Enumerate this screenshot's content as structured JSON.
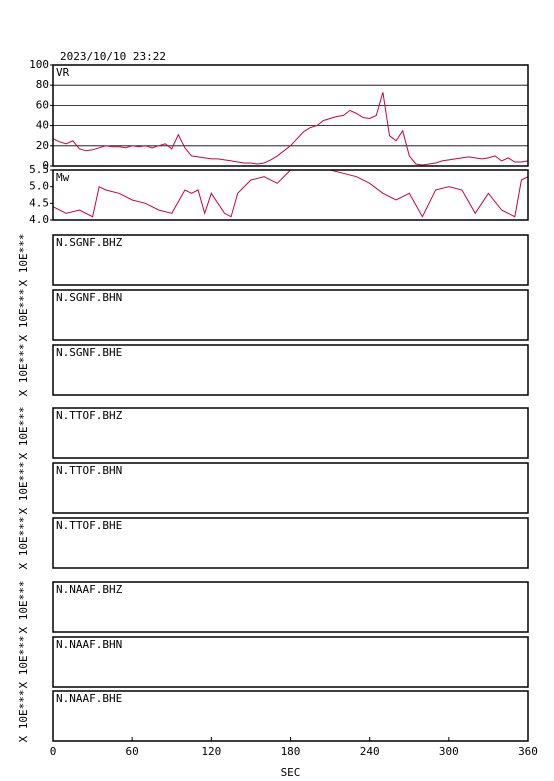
{
  "chart_data": [
    {
      "type": "line",
      "title": "2023/10/10 23:22",
      "label": "VR",
      "color": "#cc0044",
      "x": [
        0,
        5,
        10,
        15,
        20,
        25,
        30,
        35,
        40,
        45,
        50,
        55,
        60,
        65,
        70,
        75,
        80,
        85,
        90,
        95,
        100,
        105,
        110,
        115,
        120,
        125,
        130,
        135,
        140,
        145,
        150,
        155,
        160,
        165,
        170,
        175,
        180,
        185,
        190,
        195,
        200,
        205,
        210,
        215,
        220,
        225,
        230,
        235,
        240,
        245,
        250,
        255,
        260,
        265,
        270,
        275,
        280,
        285,
        290,
        295,
        300,
        305,
        310,
        315,
        320,
        325,
        330,
        335,
        340,
        345,
        350,
        355,
        360
      ],
      "values": [
        27,
        24,
        22,
        25,
        17,
        15,
        16,
        18,
        20,
        19,
        19,
        18,
        20,
        19,
        20,
        18,
        20,
        22,
        17,
        31,
        18,
        10,
        9,
        8,
        7,
        7,
        6,
        5,
        4,
        3,
        3,
        2,
        3,
        6,
        10,
        15,
        20,
        27,
        34,
        38,
        40,
        45,
        47,
        49,
        50,
        55,
        52,
        48,
        47,
        50,
        73,
        30,
        25,
        35,
        10,
        2,
        1,
        2,
        3,
        5,
        6,
        7,
        8,
        9,
        8,
        7,
        8,
        10,
        5,
        8,
        4,
        4,
        5
      ],
      "xlim": [
        0,
        360
      ],
      "ylim": [
        0,
        100
      ],
      "yticks": [
        0,
        20,
        40,
        60,
        80,
        100
      ],
      "grid": true
    },
    {
      "type": "line",
      "label": "Mw",
      "color": "#cc0044",
      "x": [
        0,
        10,
        20,
        30,
        35,
        40,
        50,
        60,
        70,
        80,
        90,
        100,
        105,
        110,
        115,
        120,
        130,
        135,
        140,
        150,
        160,
        170,
        180,
        190,
        200,
        210,
        220,
        230,
        240,
        250,
        260,
        270,
        280,
        290,
        300,
        310,
        320,
        330,
        340,
        350,
        355,
        360
      ],
      "values": [
        4.4,
        4.2,
        4.3,
        4.1,
        5.0,
        4.9,
        4.8,
        4.6,
        4.5,
        4.3,
        4.2,
        4.9,
        4.8,
        4.9,
        4.2,
        4.8,
        4.2,
        4.1,
        4.8,
        5.2,
        5.3,
        5.1,
        5.5,
        5.5,
        5.5,
        5.5,
        5.4,
        5.3,
        5.1,
        4.8,
        4.6,
        4.8,
        4.1,
        4.9,
        5.0,
        4.9,
        4.2,
        4.8,
        4.3,
        4.1,
        5.2,
        5.3
      ],
      "xlim": [
        0,
        360
      ],
      "ylim": [
        4.0,
        5.5
      ],
      "yticks": [
        {
          "value": 4.0,
          "label": "4.0"
        },
        4.5,
        {
          "value": 5.0,
          "label": "5.0"
        },
        5.5
      ],
      "grid": false
    },
    {
      "type": "line",
      "label": "N.SGNF.BHZ",
      "ylabel": "X 10E***"
    },
    {
      "type": "line",
      "label": "N.SGNF.BHN",
      "ylabel": "X 10E***"
    },
    {
      "type": "line",
      "label": "N.SGNF.BHE",
      "ylabel": "X 10E***"
    },
    {
      "type": "line",
      "label": "N.TTOF.BHZ",
      "ylabel": "X 10E***"
    },
    {
      "type": "line",
      "label": "N.TTOF.BHN",
      "ylabel": "X 10E***"
    },
    {
      "type": "line",
      "label": "N.TTOF.BHE",
      "ylabel": "X 10E***"
    },
    {
      "type": "line",
      "label": "N.NAAF.BHZ",
      "ylabel": "X 10E***"
    },
    {
      "type": "line",
      "label": "N.NAAF.BHN",
      "ylabel": "X 10E***"
    },
    {
      "type": "line",
      "label": "N.NAAF.BHE",
      "ylabel": "X 10E***",
      "xlim": [
        0,
        360
      ],
      "xticks": [
        0,
        60,
        120,
        180,
        240,
        300,
        360
      ],
      "xlabel": "SEC"
    }
  ]
}
